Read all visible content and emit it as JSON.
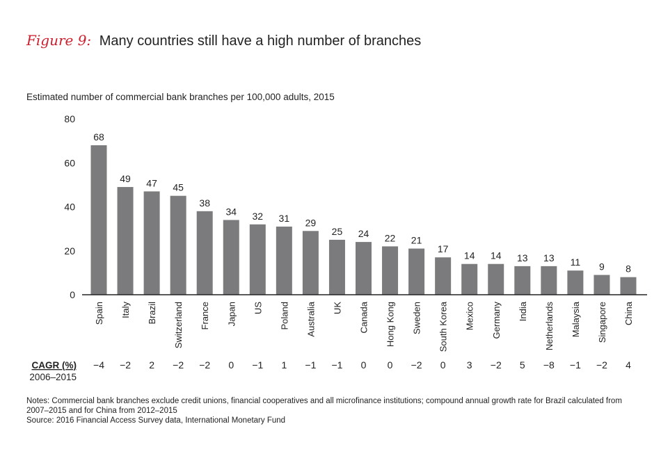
{
  "figure": {
    "label": "Figure 9:",
    "title": "Many countries still have a high number of branches"
  },
  "colors": {
    "bar": "#7b7b7d",
    "axis": "#222222",
    "accent": "#cc1f2d"
  },
  "chart_data": {
    "type": "bar",
    "title": "Many countries still have a high number of branches",
    "subtitle": "Estimated number of commercial bank branches per 100,000 adults, 2015",
    "xlabel": "",
    "ylabel": "",
    "ylim": [
      0,
      80
    ],
    "yticks": [
      0,
      20,
      40,
      60,
      80
    ],
    "grid": false,
    "categories": [
      "Spain",
      "Italy",
      "Brazil",
      "Switzerland",
      "France",
      "Japan",
      "US",
      "Poland",
      "Australia",
      "UK",
      "Canada",
      "Hong Kong",
      "Sweden",
      "South Korea",
      "Mexico",
      "Germany",
      "India",
      "Netherlands",
      "Malaysia",
      "Singapore",
      "China"
    ],
    "values": [
      68,
      49,
      47,
      45,
      38,
      34,
      32,
      31,
      29,
      25,
      24,
      22,
      21,
      17,
      14,
      14,
      13,
      13,
      11,
      9,
      8
    ],
    "cagr_label": "CAGR (%)",
    "cagr_period": "2006–2015",
    "cagr": [
      "−4",
      "−2",
      "2",
      "−2",
      "−2",
      "0",
      "−1",
      "1",
      "−1",
      "−1",
      "0",
      "0",
      "−2",
      "0",
      "3",
      "−2",
      "5",
      "−8",
      "−1",
      "−2",
      "4"
    ]
  },
  "notes": {
    "line1": "Notes: Commercial bank branches exclude credit unions, financial cooperatives and all microfinance institutions; compound annual growth rate for Brazil calculated from",
    "line2": "2007–2015 and for China from 2012–2015",
    "source": "Source: 2016 Financial Access Survey data, International Monetary Fund"
  }
}
